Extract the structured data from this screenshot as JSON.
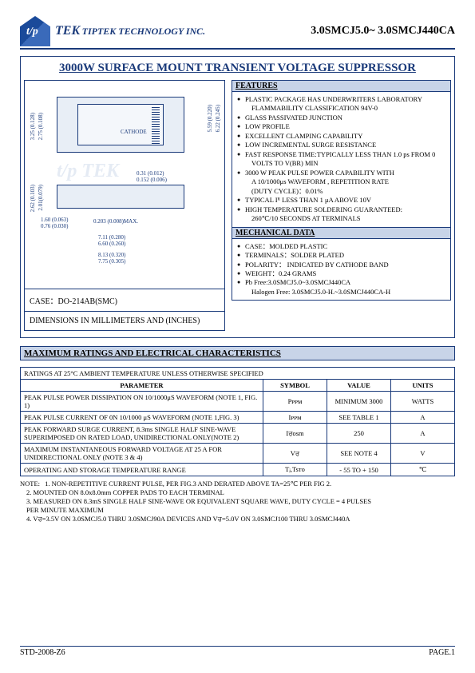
{
  "header": {
    "company_brand": "TEK",
    "company_line": "TIPTEK TECHNOLOGY INC.",
    "part_range": "3.0SMCJ5.0~  3.0SMCJ440CA"
  },
  "title": "3000W SURFACE MOUNT TRANSIENT VOLTAGE SUPPRESSOR",
  "package": {
    "case_label": "CASE：DO-214AB(SMC)",
    "dim_label": "DIMENSIONS IN MILLIMETERS AND (INCHES)",
    "cathode_text": "CATHODE",
    "dims": {
      "h1": "3.25 (0.128)",
      "h1b": "2.75 (0.108)",
      "h2": "6.22 (0.245)",
      "h2b": "5.59 (0.220)",
      "t1": "0.31 (0.012)",
      "t1b": "0.152 (0.006)",
      "s1": "2.62 (0.103)",
      "s1b": "2.01(0.079)",
      "s2": "1.60 (0.063)",
      "s2b": "0.76 (0.030)",
      "lead": "0.203 (0.008)MAX.",
      "w1": "7.11 (0.280)",
      "w1b": "6.60 (0.260)",
      "w2": "8.13 (0.320)",
      "w2b": "7.75 (0.305)"
    }
  },
  "features": {
    "heading": "FEATURES",
    "items": [
      {
        "t": "PLASTIC PACKAGE HAS UNDERWRITERS LABORATORY",
        "b": true
      },
      {
        "t": "FLAMMABILITY CLASSIFICATION 94V-0",
        "b": false,
        "indent": true
      },
      {
        "t": "GLASS PASSIVATED JUNCTION",
        "b": true
      },
      {
        "t": "LOW PROFILE",
        "b": true
      },
      {
        "t": "EXCELLENT CLAMPING CAPABILITY",
        "b": true
      },
      {
        "t": "LOW INCREMENTAL SURGE RESISTANCE",
        "b": true
      },
      {
        "t": "FAST RESPONSE TIME:TYPICALLY LESS THAN 1.0 ps FROM   0",
        "b": true
      },
      {
        "t": "VOLTS TO V(BR) MIN",
        "b": false,
        "indent": true
      },
      {
        "t": "3000 W PEAK PULSE POWER CAPABILITY WITH",
        "b": true
      },
      {
        "t": "A 10/1000μs WAVEFORM , REPETITION RATE",
        "b": false,
        "indent": true
      },
      {
        "t": "(DUTY CYCLE)：0.01%",
        "b": false,
        "indent": true
      },
      {
        "t": "TYPICAL Iᴿ LESS THAN 1 μA ABOVE 10V",
        "b": true
      },
      {
        "t": "HIGH TEMPERATURE SOLDERING GUARANTEED:",
        "b": true
      },
      {
        "t": "260℃/10 SECONDS AT TERMINALS",
        "b": false,
        "indent": true
      }
    ]
  },
  "mechanical": {
    "heading": "MECHANICAL DATA",
    "items": [
      {
        "t": "CASE：MOLDED PLASTIC",
        "b": true
      },
      {
        "t": "TERMINALS：SOLDER PLATED",
        "b": true
      },
      {
        "t": "POLARITY： INDICATED BY CATHODE BAND",
        "b": true
      },
      {
        "t": "WEIGHT：0.24 GRAMS",
        "b": true
      },
      {
        "t": "Pb Free:3.0SMCJ5.0~3.0SMCJ440CA",
        "b": true
      },
      {
        "t": "Halogen   Free: 3.0SMCJ5.0-H.~3.0SMCJ440CA-H",
        "b": false,
        "indent": true
      }
    ]
  },
  "ratings": {
    "heading": "MAXIMUM RATINGS AND ELECTRICAL CHARACTERISTICS",
    "caption": "RATINGS AT 25°C AMBIENT TEMPERATURE UNLESS OTHERWISE SPECIFIED",
    "cols": [
      "PARAMETER",
      "SYMBOL",
      "VALUE",
      "UNITS"
    ],
    "rows": [
      {
        "p": "PEAK PULSE POWER DISSIPATION ON 10/1000μS WAVEFORM (NOTE 1, FIG. 1)",
        "s": "Pᴘᴘᴍ",
        "v": "MINIMUM 3000",
        "u": "WATTS"
      },
      {
        "p": "PEAK PULSE CURRENT OF 0N 10/1000 μS WAVEFORM (NOTE 1,FIG. 3)",
        "s": "Iᴘᴘᴍ",
        "v": "SEE TABLE 1",
        "u": "A"
      },
      {
        "p": "PEAK FORWARD SURGE CURRENT, 8.3ms SINGLE HALF SINE-WAVE SUPERIMPOSED ON RATED LOAD, UNIDIRECTIONAL ONLY(NOTE 2)",
        "s": "Iਰᴏsm",
        "v": "250",
        "u": "A"
      },
      {
        "p": "MAXIMUM INSTANTANEOUS FORWARD VOLTAGE AT 25 A FOR UNIDIRECTIONAL ONLY (NOTE 3 & 4)",
        "s": "Vਰ",
        "v": "SEE NOTE 4",
        "u": "V"
      },
      {
        "p": "OPERATING AND STORAGE TEMPERATURE RANGE",
        "s": "Tⱼ,Tsᴛᴏ",
        "v": "- 55 TO + 150",
        "u": "℃"
      }
    ]
  },
  "notes": {
    "label": "NOTE:",
    "lines": [
      "1. NON-REPETITIVE CURRENT PULSE, PER FIG.3 AND DERATED ABOVE TA=25℃ PER FIG 2.",
      "2. MOUNTED ON 8.0x8.0mm COPPER PADS TO EACH TERMINAL",
      "3. MEASURED ON 8.3mS SINGLE HALF SINE-WAVE OR EQUIVALENT SQUARE WAVE, DUTY CYCLE = 4 PULSES",
      "    PER MINUTE MAXIMUM",
      "4. Vਰ=3.5V ON 3.0SMCJ5.0 THRU 3.0SMCJ90A DEVICES AND Vਰ=5.0V ON 3.0SMCJ100 THRU 3.0SMCJ440A"
    ]
  },
  "footer": {
    "left": "STD-2008-Z6",
    "right": "PAGE.1"
  },
  "colors": {
    "brand": "#1a3a7a",
    "panel": "#c8d4e8",
    "shade": "#e8eef6"
  }
}
